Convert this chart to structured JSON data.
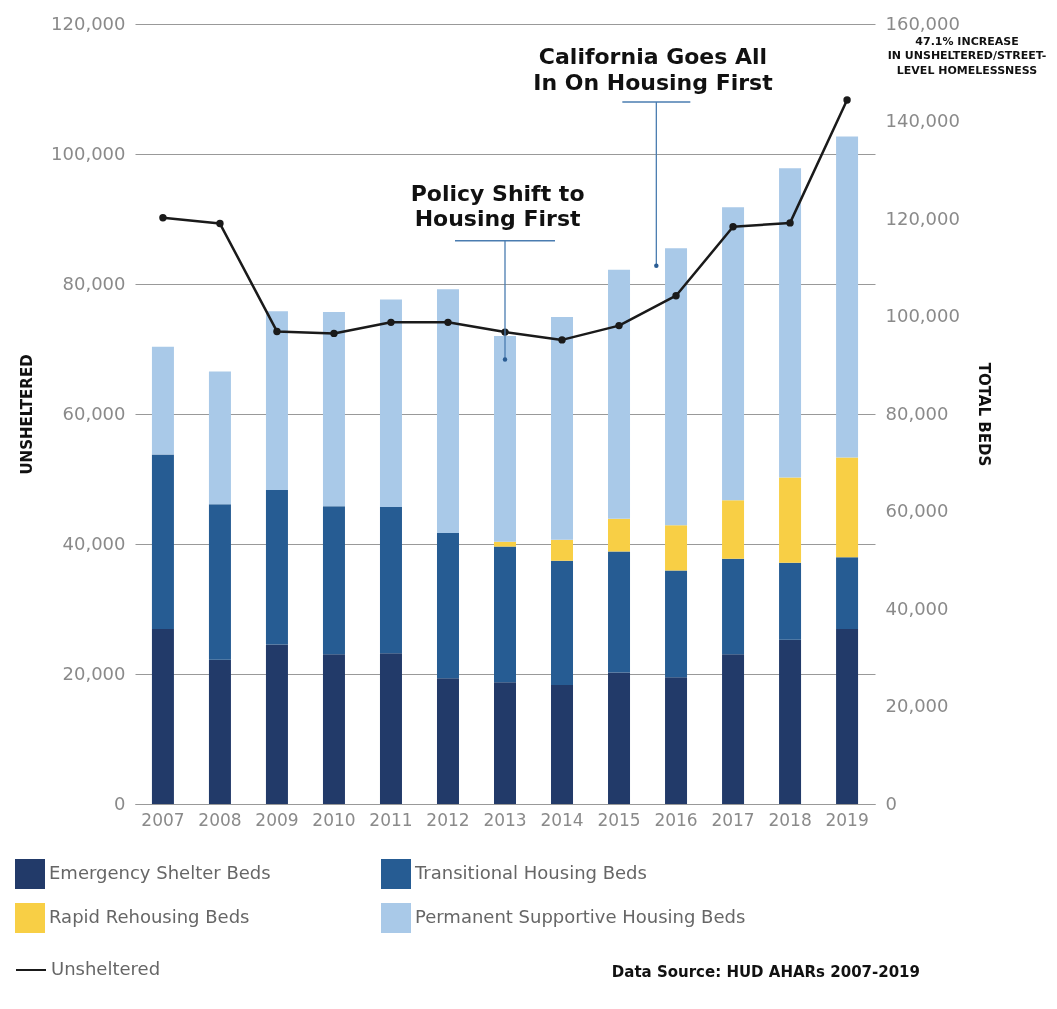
{
  "chart_data": {
    "type": "bar",
    "stacked": true,
    "ylabel": "UNSHELTERED",
    "y2label": "TOTAL BEDS",
    "categories": [
      "2007",
      "2008",
      "2009",
      "2010",
      "2011",
      "2012",
      "2013",
      "2014",
      "2015",
      "2016",
      "2017",
      "2018",
      "2019"
    ],
    "series": [
      {
        "name": "Emergency Shelter Beds",
        "color": "#223a69",
        "axis": "y2",
        "values": [
          35900,
          29600,
          32700,
          30700,
          30900,
          25800,
          25000,
          24400,
          27000,
          26000,
          30700,
          33700,
          35900
        ]
      },
      {
        "name": "Transitional Housing Beds",
        "color": "#265c93",
        "axis": "y2",
        "values": [
          35800,
          31900,
          31700,
          30400,
          30000,
          29800,
          27800,
          25500,
          24800,
          21900,
          19600,
          15800,
          14700
        ]
      },
      {
        "name": "Rapid Rehousing Beds",
        "color": "#f8cf45",
        "axis": "y2",
        "values": [
          null,
          null,
          null,
          null,
          null,
          null,
          1000,
          4300,
          6700,
          9300,
          12000,
          17500,
          20500
        ]
      },
      {
        "name": "Permanent Supportive Housing Beds",
        "color": "#a9c9e8",
        "axis": "y2",
        "values": [
          22100,
          27200,
          36700,
          39800,
          42600,
          50000,
          42200,
          45700,
          51100,
          56800,
          60100,
          63400,
          65800
        ]
      },
      {
        "name": "Unsheltered",
        "type": "line",
        "color": "#1a1a1a",
        "marker": "circle",
        "line_style": "solid",
        "values": [
          90200,
          89300,
          72700,
          72400,
          74100,
          74100,
          72600,
          71400,
          73600,
          78200,
          88800,
          89400,
          108300
        ]
      }
    ],
    "ylim": [
      0,
      120000
    ],
    "yticks": [
      0,
      {
        "value": 20000,
        "label": "20,000"
      },
      {
        "value": 40000,
        "label": "40,000"
      },
      {
        "value": 60000,
        "label": "60,000"
      },
      {
        "value": 80000,
        "label": "80,000"
      },
      {
        "value": 100000,
        "label": "100,000"
      },
      {
        "value": 120000,
        "label": "120,000"
      }
    ],
    "y2lim": [
      0,
      160000
    ],
    "y2ticks": [
      0,
      {
        "value": 20000,
        "label": "20,000"
      },
      {
        "value": 40000,
        "label": "40,000"
      },
      {
        "value": 60000,
        "label": "60,000"
      },
      {
        "value": 80000,
        "label": "80,000"
      },
      {
        "value": 100000,
        "label": "100,000"
      },
      {
        "value": 120000,
        "label": "120,000"
      },
      {
        "value": 140000,
        "label": "140,000"
      },
      {
        "value": 160000,
        "label": "160,000"
      }
    ],
    "grid": "y",
    "legend": "bottom",
    "annotations": [
      "Policy Shift to\nHousing First",
      "California Goes All\nIn On Housing First",
      "47.1% INCREASE\nIN UNSHELTERED/STREET-\nLEVEL HOMELESSNESS",
      "Data Source: HUD AHARs 2007-2019"
    ]
  }
}
